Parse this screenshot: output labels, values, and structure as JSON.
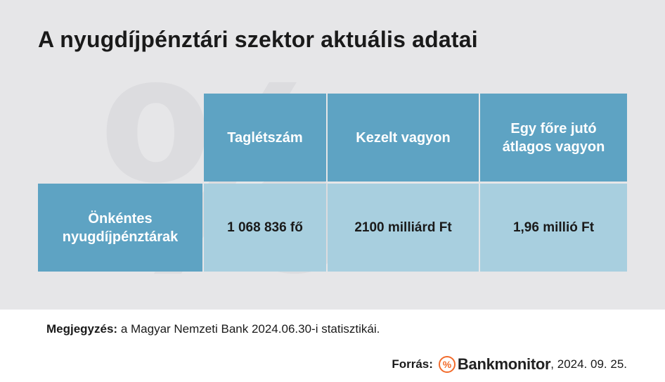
{
  "title": "A nyugdíjpénztári szektor aktuális adatai",
  "table": {
    "headers": [
      "Taglétszám",
      "Kezelt vagyon",
      "Egy főre jutó",
      "átlagos vagyon"
    ],
    "row_label_line1": "Önkéntes",
    "row_label_line2": "nyugdíjpénztárak",
    "values": [
      "1 068 836 fő",
      "2100 milliárd Ft",
      "1,96 millió Ft"
    ]
  },
  "note": {
    "label": "Megjegyzés:",
    "text": " a Magyar Nemzeti Bank 2024.06.30-i statisztikái."
  },
  "source": {
    "label": "Forrás:",
    "logo_icon": "%",
    "brand": "Bankmonitor",
    "date": ", 2024. 09. 25."
  },
  "colors": {
    "header_bg": "#5ea3c3",
    "value_bg": "#a8cfdf",
    "panel_bg": "#e6e6e8",
    "brand_accent": "#f26b2b"
  }
}
